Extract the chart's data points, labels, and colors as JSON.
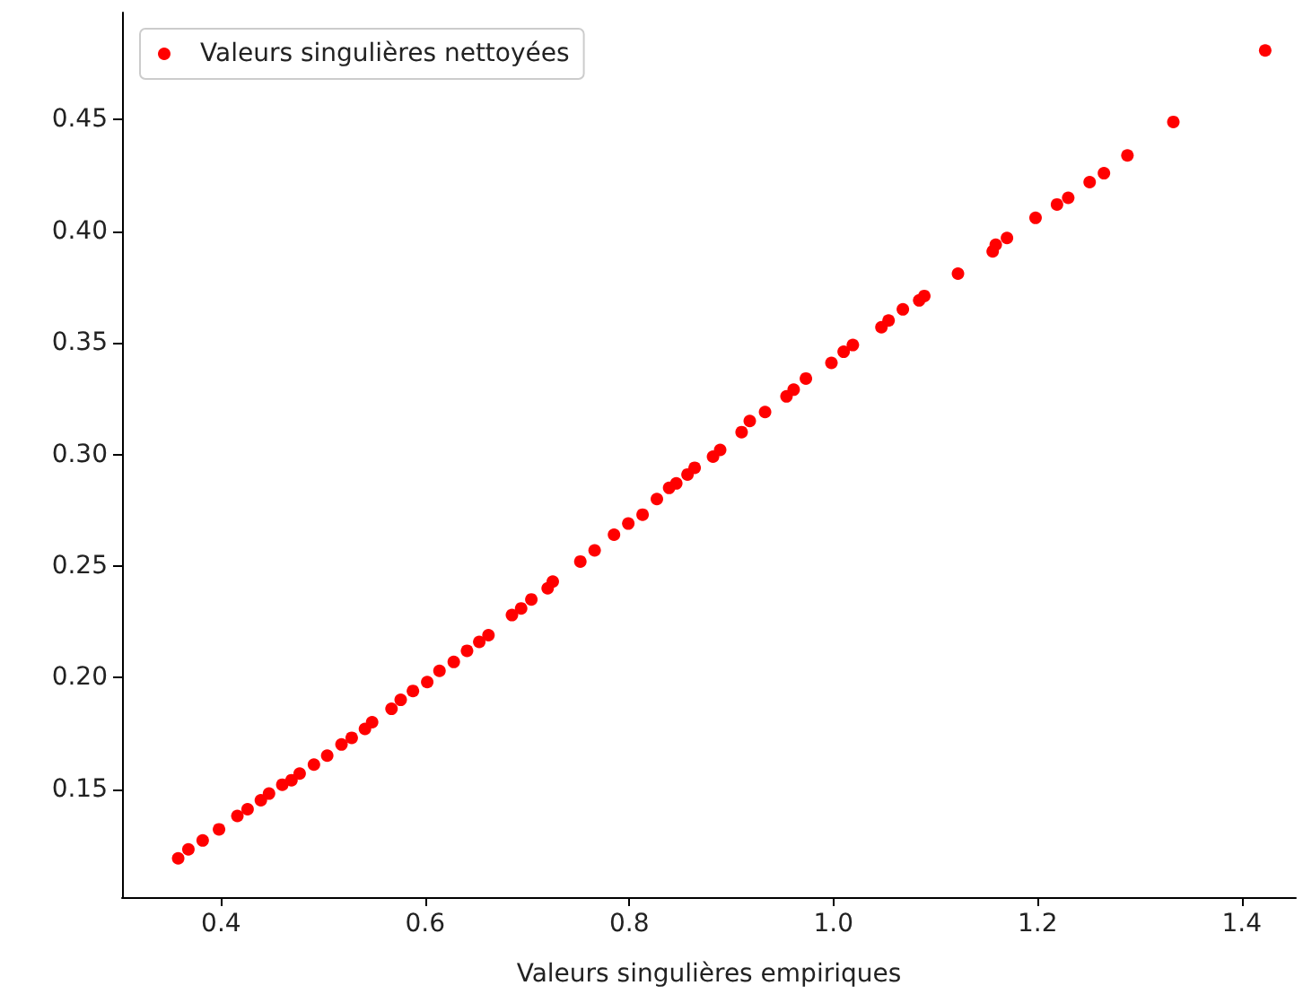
{
  "chart_data": {
    "type": "scatter",
    "xlabel": "Valeurs singulières empiriques",
    "x": [
      0.358,
      0.368,
      0.382,
      0.398,
      0.416,
      0.426,
      0.439,
      0.447,
      0.46,
      0.469,
      0.477,
      0.491,
      0.504,
      0.518,
      0.528,
      0.541,
      0.548,
      0.567,
      0.576,
      0.588,
      0.602,
      0.614,
      0.628,
      0.641,
      0.653,
      0.662,
      0.685,
      0.694,
      0.704,
      0.72,
      0.725,
      0.752,
      0.766,
      0.785,
      0.799,
      0.813,
      0.827,
      0.839,
      0.846,
      0.857,
      0.864,
      0.882,
      0.889,
      0.91,
      0.918,
      0.933,
      0.954,
      0.961,
      0.973,
      0.998,
      1.01,
      1.019,
      1.047,
      1.054,
      1.068,
      1.084,
      1.089,
      1.122,
      1.156,
      1.159,
      1.17,
      1.198,
      1.219,
      1.23,
      1.251,
      1.265,
      1.288,
      1.333,
      1.423
    ],
    "series": [
      {
        "name": "Valeurs singulières nettoyées",
        "color": "#ff0000",
        "values": [
          0.119,
          0.123,
          0.127,
          0.132,
          0.138,
          0.141,
          0.145,
          0.148,
          0.152,
          0.154,
          0.157,
          0.161,
          0.165,
          0.17,
          0.173,
          0.177,
          0.18,
          0.186,
          0.19,
          0.194,
          0.198,
          0.203,
          0.207,
          0.212,
          0.216,
          0.219,
          0.228,
          0.231,
          0.235,
          0.24,
          0.243,
          0.252,
          0.257,
          0.264,
          0.269,
          0.273,
          0.28,
          0.285,
          0.287,
          0.291,
          0.294,
          0.299,
          0.302,
          0.31,
          0.315,
          0.319,
          0.326,
          0.329,
          0.334,
          0.341,
          0.346,
          0.349,
          0.357,
          0.36,
          0.365,
          0.369,
          0.371,
          0.381,
          0.391,
          0.394,
          0.397,
          0.406,
          0.412,
          0.415,
          0.422,
          0.426,
          0.434,
          0.449,
          0.481
        ]
      }
    ],
    "xlim": [
      0.303,
      1.453
    ],
    "ylim": [
      0.1016,
      0.498
    ],
    "xticks": [
      0.4,
      0.6,
      0.8,
      {
        "value": 1,
        "label": "1.0"
      },
      1.2,
      1.4
    ],
    "yticks": [
      0.15,
      {
        "value": 0.2,
        "label": "0.20"
      },
      0.25,
      {
        "value": 0.3,
        "label": "0.30"
      },
      0.35,
      {
        "value": 0.4,
        "label": "0.40"
      },
      0.45
    ],
    "grid": false,
    "legend": "top left",
    "marker": "circle"
  }
}
